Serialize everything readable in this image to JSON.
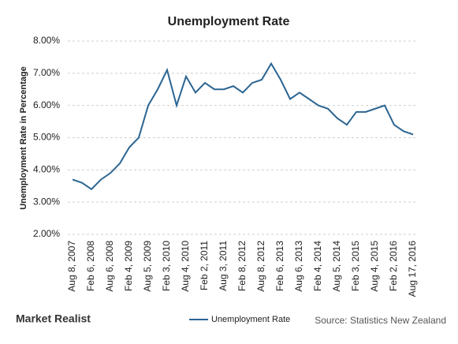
{
  "chart_data": {
    "type": "line",
    "title": "Unemployment Rate",
    "y_label": "Unemployment Rate in Percentage",
    "source": "Source: Statistics New Zealand",
    "logo": "Market Realist",
    "categories": [
      "Aug 8, 2007",
      null,
      "Feb 6, 2008",
      null,
      "Aug 6, 2008",
      null,
      "Feb 4, 2009",
      null,
      "Aug 5, 2009",
      null,
      "Feb 3, 2010",
      null,
      "Aug 4, 2010",
      null,
      "Feb 2, 2011",
      null,
      "Aug 3, 2011",
      null,
      "Feb 8, 2012",
      null,
      "Aug 8, 2012",
      null,
      "Feb 6, 2013",
      null,
      "Aug 6, 2013",
      null,
      "Feb 4, 2014",
      null,
      "Aug 5, 2014",
      null,
      "Feb 3, 2015",
      null,
      "Aug 4, 2015",
      null,
      "Feb 2, 2016",
      null,
      "Aug 17, 2016"
    ],
    "series": [
      {
        "name": "Unemployment Rate",
        "color": "#2b6592",
        "values": [
          3.7,
          3.6,
          3.4,
          3.7,
          3.9,
          4.2,
          4.7,
          5.0,
          6.0,
          6.5,
          7.1,
          6.0,
          6.9,
          6.4,
          6.7,
          6.5,
          6.5,
          6.6,
          6.4,
          6.7,
          6.8,
          7.3,
          6.8,
          6.2,
          6.4,
          6.2,
          6.0,
          5.9,
          5.6,
          5.4,
          5.8,
          5.8,
          5.9,
          6.0,
          5.4,
          5.2,
          5.1
        ]
      }
    ],
    "ylim": [
      2,
      8
    ],
    "yticks": [
      {
        "value": 2,
        "label": "2.00%"
      },
      {
        "value": 3,
        "label": "3.00%"
      },
      {
        "value": 4,
        "label": "4.00%"
      },
      {
        "value": 5,
        "label": "5.00%"
      },
      {
        "value": 6,
        "label": "6.00%"
      },
      {
        "value": 7,
        "label": "7.00%"
      },
      {
        "value": 8,
        "label": "8.00%"
      }
    ],
    "grid": true
  }
}
